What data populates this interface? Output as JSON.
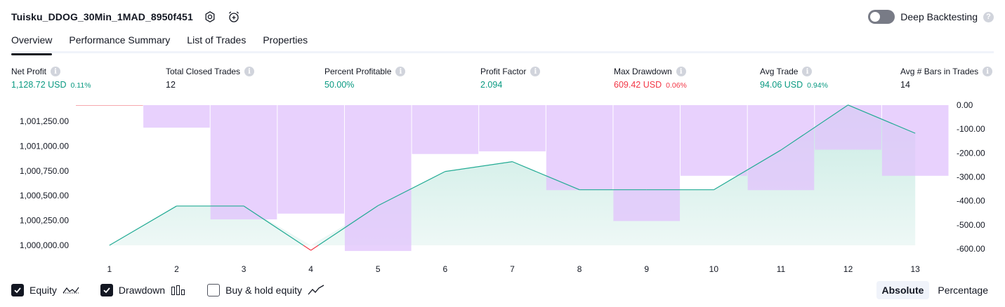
{
  "header": {
    "strategy_name": "Tuisku_DDOG_30Min_1MAD_8950f451",
    "icons": [
      "settings-icon",
      "alarm-add-icon"
    ]
  },
  "deep_backtesting": {
    "label": "Deep Backtesting",
    "enabled": false,
    "help_icon": "question-icon"
  },
  "tabs": [
    {
      "label": "Overview",
      "active": true
    },
    {
      "label": "Performance Summary",
      "active": false
    },
    {
      "label": "List of Trades",
      "active": false
    },
    {
      "label": "Properties",
      "active": false
    }
  ],
  "metrics": [
    {
      "label": "Net Profit",
      "value": "1,128.72 USD",
      "pct": "0.11%",
      "tone": "green"
    },
    {
      "label": "Total Closed Trades",
      "value": "12",
      "pct": "",
      "tone": "neutral"
    },
    {
      "label": "Percent Profitable",
      "value": "50.00%",
      "pct": "",
      "tone": "green"
    },
    {
      "label": "Profit Factor",
      "value": "2.094",
      "pct": "",
      "tone": "green"
    },
    {
      "label": "Max Drawdown",
      "value": "609.42 USD",
      "pct": "0.06%",
      "tone": "red"
    },
    {
      "label": "Avg Trade",
      "value": "94.06 USD",
      "pct": "0.94%",
      "tone": "green"
    },
    {
      "label": "Avg # Bars in Trades",
      "value": "14",
      "pct": "",
      "tone": "neutral"
    }
  ],
  "chart_data": {
    "type": "area",
    "x": [
      1,
      2,
      3,
      4,
      5,
      6,
      7,
      8,
      9,
      10,
      11,
      12,
      13
    ],
    "series": [
      {
        "kind": "line-area",
        "axis": "left",
        "values": [
          1000000,
          1000396,
          1000396,
          999950,
          1000400,
          1000744,
          1000843,
          1000560,
          1000560,
          1000560,
          1000960,
          1001414,
          1001129
        ]
      },
      {
        "kind": "bar",
        "axis": "right",
        "values": [
          0,
          -94,
          -477,
          -453,
          -609,
          -204,
          -193,
          -355,
          -484,
          -295,
          -355,
          -186,
          -295
        ]
      }
    ],
    "left_axis": {
      "ticks": [
        "1,000,000.00",
        "1,000,250.00",
        "1,000,500.00",
        "1,000,750.00",
        "1,001,000.00",
        "1,001,250.00"
      ],
      "tick_values": [
        1000000,
        1000250,
        1000500,
        1000750,
        1001000,
        1001250
      ],
      "range": [
        999950,
        1001414
      ]
    },
    "right_axis": {
      "ticks": [
        "0.00",
        "-100.00",
        "-200.00",
        "-300.00",
        "-400.00",
        "-500.00",
        "-600.00"
      ],
      "tick_values": [
        0,
        -100,
        -200,
        -300,
        -400,
        -500,
        -600
      ],
      "range": [
        -600,
        0
      ]
    },
    "colors": {
      "equity_line": "#22ab94",
      "equity_line_below": "#f23645",
      "equity_fill_top": "#c8ebe3",
      "equity_fill_bottom": "#eef8f6",
      "drawdown_bar": "#e1c4fd",
      "drawdown_bar_overlap": "#b3b8e6"
    }
  },
  "legend": [
    {
      "label": "Equity",
      "checked": true,
      "icon": "equity-line-icon"
    },
    {
      "label": "Drawdown",
      "checked": true,
      "icon": "drawdown-bars-icon"
    },
    {
      "label": "Buy & hold equity",
      "checked": false,
      "icon": "buy-hold-line-icon"
    }
  ],
  "mode": {
    "options": [
      "Absolute",
      "Percentage"
    ],
    "selected": "Absolute"
  }
}
